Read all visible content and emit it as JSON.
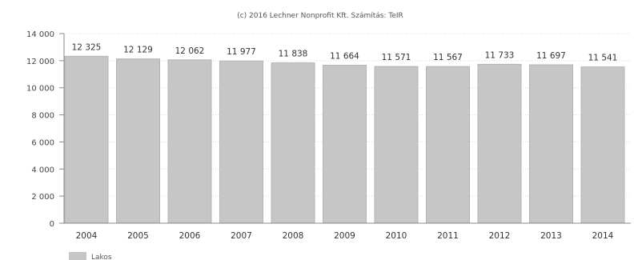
{
  "chart_data": {
    "type": "bar",
    "credit": "(c) 2016 Lechner Nonprofit Kft. Számítás: TeIR",
    "categories": [
      "2004",
      "2005",
      "2006",
      "2007",
      "2008",
      "2009",
      "2010",
      "2011",
      "2012",
      "2013",
      "2014"
    ],
    "series": [
      {
        "name": "Lakos",
        "values": [
          12325,
          12129,
          12062,
          11977,
          11838,
          11664,
          11571,
          11567,
          11733,
          11697,
          11541
        ],
        "labels": [
          "12 325",
          "12 129",
          "12 062",
          "11 977",
          "11 838",
          "11 664",
          "11 571",
          "11 567",
          "11 733",
          "11 697",
          "11 541"
        ]
      }
    ],
    "yticks": [
      {
        "value": 0,
        "label": "0"
      },
      {
        "value": 2000,
        "label": "2 000"
      },
      {
        "value": 4000,
        "label": "4 000"
      },
      {
        "value": 6000,
        "label": "6 000"
      },
      {
        "value": 8000,
        "label": "8 000"
      },
      {
        "value": 10000,
        "label": "10 000"
      },
      {
        "value": 12000,
        "label": "12 000"
      },
      {
        "value": 14000,
        "label": "14 000"
      }
    ],
    "ylim": [
      0,
      14000
    ],
    "grid": true,
    "legend_position": "bottom-left",
    "bar_color": "#c6c6c6"
  }
}
